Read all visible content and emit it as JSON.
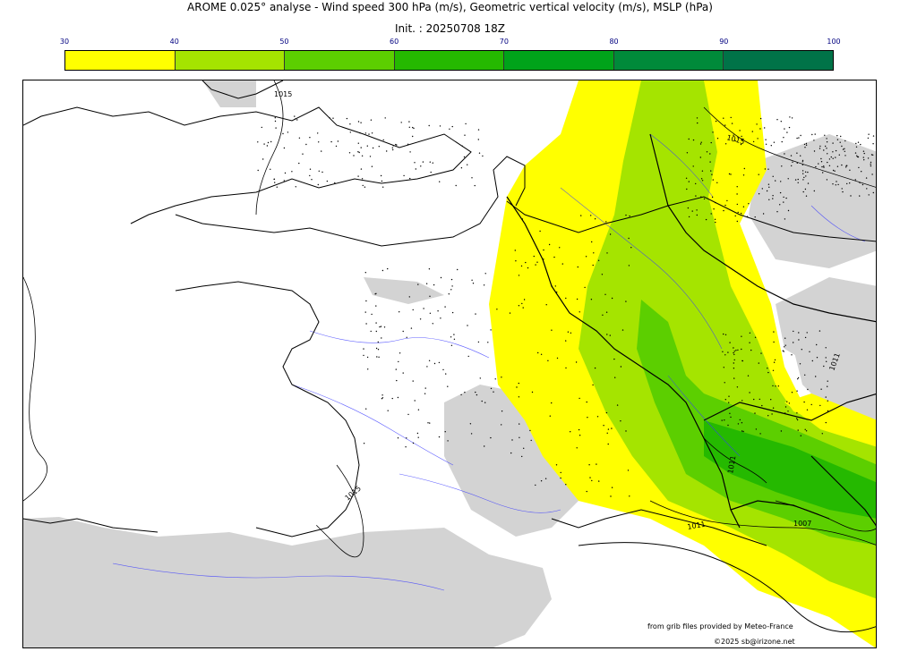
{
  "header": {
    "title": "AROME 0.025° analyse - Wind speed 300 hPa (m/s), Geometric vertical velocity (m/s), MSLP (hPa)",
    "init": "Init. : 20250708 18Z"
  },
  "legend": {
    "ticks": [
      "30",
      "40",
      "50",
      "60",
      "70",
      "80",
      "90",
      "100"
    ],
    "colors": [
      "#ffff00",
      "#a5e400",
      "#5ccf00",
      "#25b900",
      "#00a31a",
      "#008a3a",
      "#007348"
    ]
  },
  "map": {
    "isobar_labels": [
      "1015",
      "1015",
      "1015",
      "1011",
      "1007",
      "1011",
      "1011"
    ],
    "fill_colors": {
      "low_terrain": "#d3d3d3",
      "lightest_wind": "#ffff00",
      "light_wind": "#a5e400",
      "mid_wind": "#5ccf00",
      "strong_wind": "#25b900"
    }
  },
  "footer": {
    "source": "from grib files provided by Meteo-France",
    "copyright": "©2025 sb@irizone.net"
  }
}
